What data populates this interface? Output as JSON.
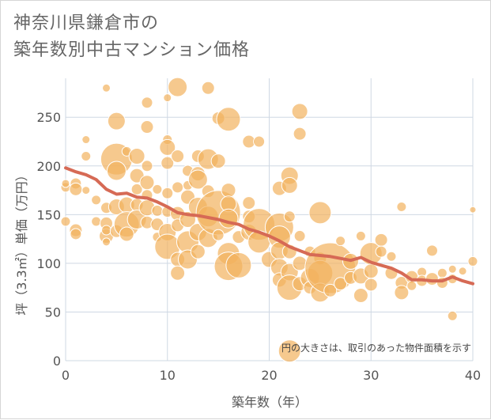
{
  "title_lines": [
    "神奈川県鎌倉市の",
    "築年数別中古マンション価格"
  ],
  "colors": {
    "bubble_fill": "#f2b25e",
    "bubble_stroke": "#ffffff",
    "trend": "#d66a55",
    "grid": "#cfd8e3",
    "plot_bg": "#ffffff"
  },
  "chart_data": {
    "type": "scatter",
    "title": "神奈川県鎌倉市の築年数別中古マンション価格",
    "xlabel": "築年数（年）",
    "ylabel": "坪（3.3㎡）単価（万円）",
    "xlim": [
      0,
      40
    ],
    "ylim": [
      0,
      290
    ],
    "xticks": [
      0,
      10,
      20,
      30,
      40
    ],
    "yticks": [
      0,
      50,
      100,
      150,
      200,
      250
    ],
    "grid": true,
    "note": "円の大きさは、取引のあった物件面積を示す",
    "size_legend": "bubble radius encodes traded floor area",
    "series": [
      {
        "kind": "bubbles",
        "points": [
          [
            0,
            178,
            6
          ],
          [
            0,
            182,
            5
          ],
          [
            0,
            143,
            6
          ],
          [
            1,
            182,
            7
          ],
          [
            1,
            176,
            8
          ],
          [
            1,
            134,
            8
          ],
          [
            1,
            130,
            7
          ],
          [
            2,
            210,
            6
          ],
          [
            2,
            227,
            5
          ],
          [
            2,
            175,
            5
          ],
          [
            3,
            165,
            6
          ],
          [
            3,
            143,
            6
          ],
          [
            4,
            157,
            7
          ],
          [
            4,
            141,
            8
          ],
          [
            4,
            128,
            9
          ],
          [
            4,
            134,
            6
          ],
          [
            4,
            122,
            5
          ],
          [
            4,
            280,
            5
          ],
          [
            5,
            207,
            20
          ],
          [
            5,
            246,
            11
          ],
          [
            5,
            195,
            12
          ],
          [
            5,
            158,
            10
          ],
          [
            5,
            133,
            8
          ],
          [
            6,
            215,
            6
          ],
          [
            6,
            160,
            10
          ],
          [
            6,
            140,
            16
          ],
          [
            6,
            130,
            9
          ],
          [
            7,
            210,
            10
          ],
          [
            7,
            190,
            9
          ],
          [
            7,
            176,
            7
          ],
          [
            7,
            160,
            8
          ],
          [
            7,
            145,
            12
          ],
          [
            8,
            265,
            7
          ],
          [
            8,
            240,
            8
          ],
          [
            8,
            200,
            7
          ],
          [
            8,
            183,
            9
          ],
          [
            8,
            170,
            7
          ],
          [
            8,
            157,
            10
          ],
          [
            8,
            142,
            8
          ],
          [
            9,
            176,
            6
          ],
          [
            9,
            154,
            7
          ],
          [
            9,
            140,
            8
          ],
          [
            9,
            127,
            6
          ],
          [
            10,
            227,
            6
          ],
          [
            10,
            219,
            10
          ],
          [
            10,
            203,
            8
          ],
          [
            10,
            172,
            7
          ],
          [
            10,
            153,
            7
          ],
          [
            10,
            132,
            11
          ],
          [
            10,
            117,
            16
          ],
          [
            10,
            270,
            5
          ],
          [
            11,
            281,
            12
          ],
          [
            11,
            210,
            8
          ],
          [
            11,
            178,
            7
          ],
          [
            11,
            151,
            9
          ],
          [
            11,
            139,
            8
          ],
          [
            11,
            104,
            9
          ],
          [
            11,
            90,
            9
          ],
          [
            12,
            195,
            7
          ],
          [
            12,
            180,
            6
          ],
          [
            12,
            168,
            9
          ],
          [
            12,
            145,
            10
          ],
          [
            12,
            122,
            14
          ],
          [
            12,
            104,
            12
          ],
          [
            13,
            210,
            8
          ],
          [
            13,
            192,
            9
          ],
          [
            13,
            186,
            12
          ],
          [
            13,
            158,
            12
          ],
          [
            13,
            132,
            11
          ],
          [
            13,
            112,
            9
          ],
          [
            14,
            280,
            8
          ],
          [
            14,
            207,
            13
          ],
          [
            14,
            174,
            8
          ],
          [
            14,
            148,
            13
          ],
          [
            14,
            126,
            12
          ],
          [
            15,
            249,
            8
          ],
          [
            15,
            205,
            9
          ],
          [
            15,
            152,
            28
          ],
          [
            15,
            129,
            7
          ],
          [
            16,
            248,
            15
          ],
          [
            16,
            175,
            9
          ],
          [
            16,
            161,
            10
          ],
          [
            16,
            146,
            12
          ],
          [
            16,
            110,
            14
          ],
          [
            16,
            97,
            18
          ],
          [
            17,
            127,
            8
          ],
          [
            17,
            98,
            16
          ],
          [
            18,
            225,
            8
          ],
          [
            18,
            162,
            8
          ],
          [
            18,
            148,
            8
          ],
          [
            18,
            132,
            10
          ],
          [
            19,
            225,
            7
          ],
          [
            19,
            140,
            20
          ],
          [
            19,
            122,
            14
          ],
          [
            20,
            104,
            10
          ],
          [
            21,
            177,
            9
          ],
          [
            21,
            137,
            18
          ],
          [
            21,
            127,
            14
          ],
          [
            21,
            113,
            11
          ],
          [
            21,
            96,
            11
          ],
          [
            21,
            83,
            9
          ],
          [
            22,
            190,
            11
          ],
          [
            22,
            180,
            10
          ],
          [
            22,
            148,
            7
          ],
          [
            22,
            112,
            9
          ],
          [
            22,
            91,
            11
          ],
          [
            22,
            75,
            16
          ],
          [
            22,
            10,
            14
          ],
          [
            23,
            233,
            8
          ],
          [
            23,
            256,
            10
          ],
          [
            23,
            128,
            7
          ],
          [
            23,
            100,
            9
          ],
          [
            23,
            79,
            9
          ],
          [
            24,
            112,
            7
          ],
          [
            24,
            85,
            12
          ],
          [
            24,
            75,
            8
          ],
          [
            25,
            152,
            14
          ],
          [
            25,
            105,
            8
          ],
          [
            25,
            90,
            16
          ],
          [
            25,
            70,
            12
          ],
          [
            26,
            95,
            32
          ],
          [
            26,
            72,
            8
          ],
          [
            27,
            123,
            6
          ],
          [
            27,
            79,
            8
          ],
          [
            28,
            102,
            10
          ],
          [
            28,
            85,
            8
          ],
          [
            29,
            128,
            6
          ],
          [
            29,
            87,
            10
          ],
          [
            29,
            67,
            9
          ],
          [
            30,
            110,
            14
          ],
          [
            30,
            92,
            9
          ],
          [
            30,
            78,
            8
          ],
          [
            31,
            124,
            8
          ],
          [
            31,
            112,
            7
          ],
          [
            32,
            107,
            6
          ],
          [
            32,
            90,
            8
          ],
          [
            33,
            158,
            6
          ],
          [
            33,
            80,
            8
          ],
          [
            33,
            70,
            9
          ],
          [
            34,
            86,
            8
          ],
          [
            34,
            77,
            6
          ],
          [
            35,
            91,
            6
          ],
          [
            35,
            82,
            7
          ],
          [
            36,
            113,
            7
          ],
          [
            36,
            84,
            8
          ],
          [
            37,
            90,
            6
          ],
          [
            37,
            80,
            7
          ],
          [
            38,
            94,
            5
          ],
          [
            38,
            84,
            6
          ],
          [
            38,
            46,
            6
          ],
          [
            39,
            92,
            5
          ],
          [
            40,
            102,
            6
          ],
          [
            40,
            155,
            4
          ]
        ]
      },
      {
        "kind": "trend",
        "points": [
          [
            0,
            198
          ],
          [
            1,
            194
          ],
          [
            2,
            191
          ],
          [
            3,
            186
          ],
          [
            4,
            176
          ],
          [
            5,
            171
          ],
          [
            6,
            172
          ],
          [
            7,
            168
          ],
          [
            8,
            167
          ],
          [
            9,
            163
          ],
          [
            10,
            158
          ],
          [
            11,
            152
          ],
          [
            12,
            150
          ],
          [
            13,
            149
          ],
          [
            14,
            147
          ],
          [
            15,
            145
          ],
          [
            16,
            142
          ],
          [
            17,
            140
          ],
          [
            18,
            135
          ],
          [
            19,
            132
          ],
          [
            20,
            128
          ],
          [
            21,
            123
          ],
          [
            22,
            117
          ],
          [
            23,
            113
          ],
          [
            24,
            109
          ],
          [
            25,
            108
          ],
          [
            26,
            107
          ],
          [
            27,
            105
          ],
          [
            28,
            103
          ],
          [
            29,
            106
          ],
          [
            30,
            101
          ],
          [
            31,
            98
          ],
          [
            32,
            95
          ],
          [
            33,
            90
          ],
          [
            34,
            83
          ],
          [
            35,
            83
          ],
          [
            36,
            82
          ],
          [
            37,
            82
          ],
          [
            38,
            86
          ],
          [
            39,
            82
          ],
          [
            40,
            79
          ]
        ]
      }
    ]
  }
}
